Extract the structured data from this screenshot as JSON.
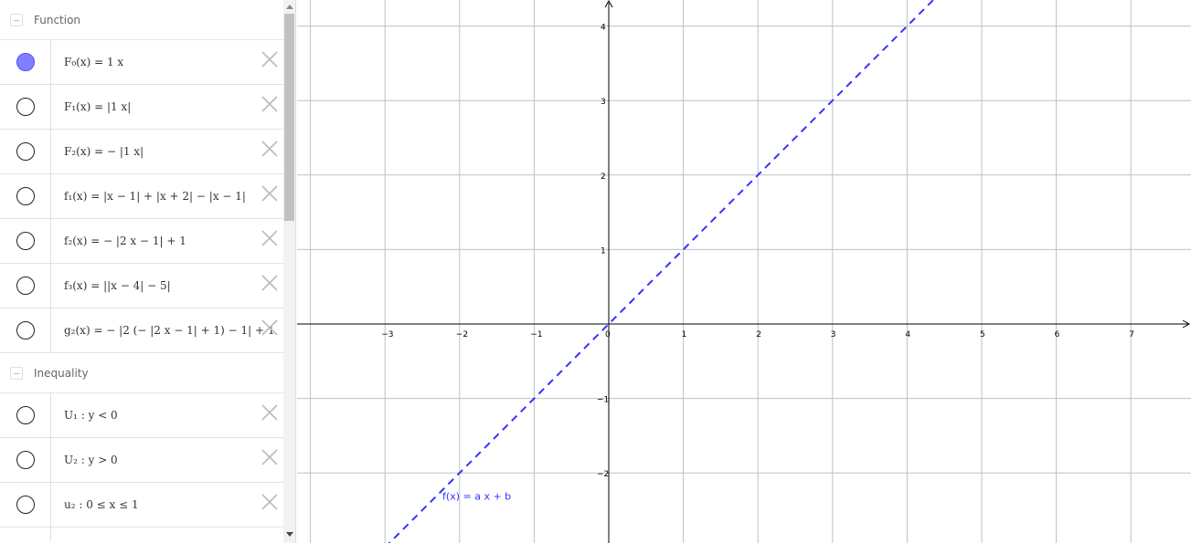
{
  "algebra": {
    "groups": [
      {
        "title": "Function",
        "items": [
          {
            "expr": "F₀(x) = 1 x",
            "shown": true
          },
          {
            "expr": "F₁(x) = |1 x|",
            "shown": false
          },
          {
            "expr": "F₂(x) = − |1 x|",
            "shown": false
          },
          {
            "expr": "f₁(x) = |x − 1| + |x + 2| − |x − 1|",
            "shown": false
          },
          {
            "expr": "f₂(x) = − |2 x − 1| + 1",
            "shown": false
          },
          {
            "expr": "f₃(x) = ||x − 4| − 5|",
            "shown": false
          },
          {
            "expr": "g₂(x) = − |2 (− |2 x − 1| + 1) − 1| + 1",
            "shown": false
          }
        ]
      },
      {
        "title": "Inequality",
        "items": [
          {
            "expr": "U₁ : y < 0",
            "shown": false
          },
          {
            "expr": "U₂ : y > 0",
            "shown": false
          },
          {
            "expr": "u₂ : 0 ≤ x ≤ 1",
            "shown": false
          }
        ]
      }
    ]
  },
  "graphics": {
    "x_ticks": [
      "−3",
      "−2",
      "−1",
      "0",
      "1",
      "2",
      "3",
      "4",
      "5",
      "6",
      "7"
    ],
    "y_ticks": [
      "4",
      "3",
      "2",
      "1",
      "−1",
      "−2"
    ],
    "function_label": "f(x) = a x + b",
    "line_color": "#3333ff",
    "grid_color": "#c0c0c0",
    "plotted": {
      "slope": 1,
      "intercept": 0,
      "style": "dashed"
    },
    "xlim": [
      -4,
      7.9
    ],
    "ylim": [
      -2.9,
      4.35
    ]
  }
}
